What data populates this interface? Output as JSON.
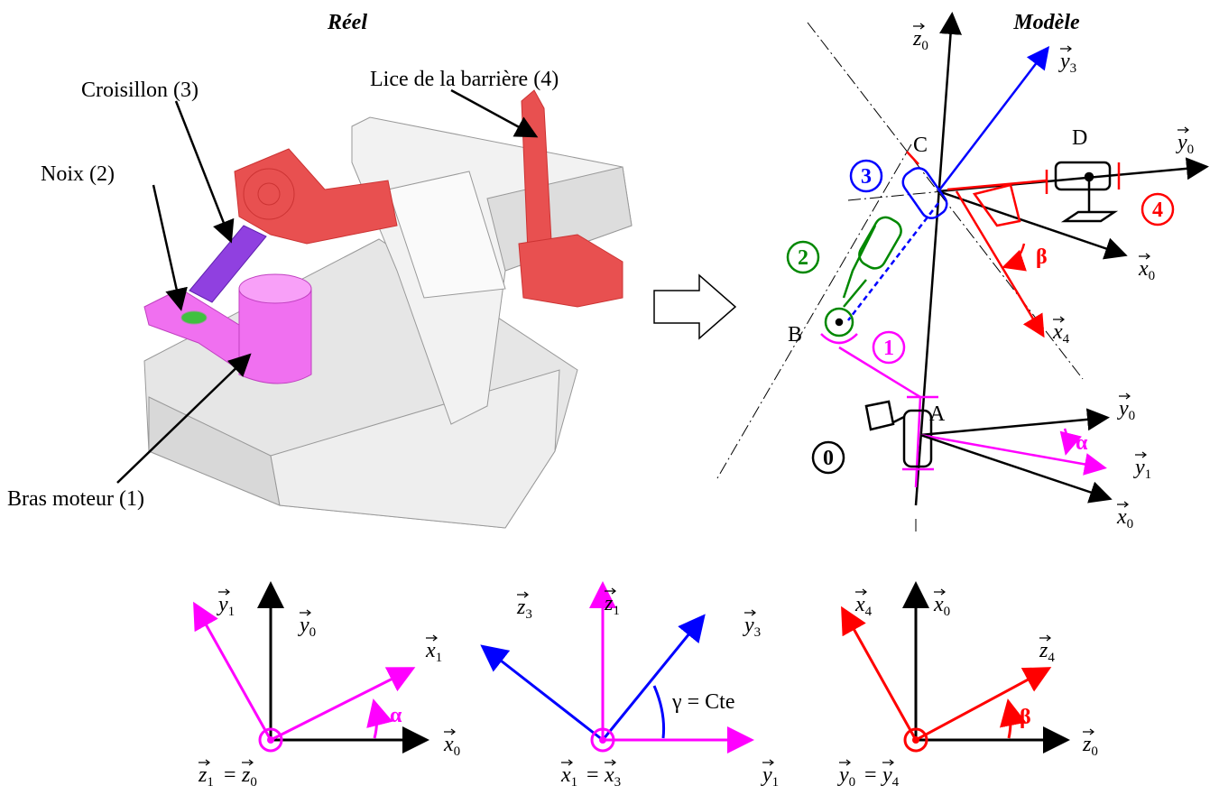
{
  "real": {
    "title": "Réel",
    "labels": [
      "Lice de la barrière (4)",
      "Croisillon (3)",
      "Noix (2)",
      "Bras moteur (1)"
    ]
  },
  "model": {
    "title": "Modèle",
    "points": [
      "C",
      "D",
      "B",
      "A"
    ],
    "solids": [
      "3",
      "4",
      "2",
      "1",
      "0"
    ],
    "angles": [
      "β",
      "α"
    ],
    "vectors": [
      {
        "letter": "z",
        "sub": "0"
      },
      {
        "letter": "y",
        "sub": "3"
      },
      {
        "letter": "y",
        "sub": "0"
      },
      {
        "letter": "x",
        "sub": "0"
      },
      {
        "letter": "x",
        "sub": "4"
      },
      {
        "letter": "y",
        "sub": "0"
      },
      {
        "letter": "y",
        "sub": "1"
      },
      {
        "letter": "x",
        "sub": "0"
      }
    ]
  },
  "bases": [
    {
      "vectors": [
        {
          "letter": "y",
          "sub": "1"
        },
        {
          "letter": "y",
          "sub": "0"
        },
        {
          "letter": "x",
          "sub": "1"
        },
        {
          "letter": "x",
          "sub": "0"
        }
      ],
      "angle": "α",
      "equation": {
        "lhs": {
          "letter": "z",
          "sub": "1"
        },
        "sign": "=",
        "rhs": {
          "letter": "z",
          "sub": "0"
        }
      }
    },
    {
      "vectors": [
        {
          "letter": "z",
          "sub": "3"
        },
        {
          "letter": "z",
          "sub": "1"
        },
        {
          "letter": "y",
          "sub": "3"
        },
        {
          "letter": "y",
          "sub": "1"
        }
      ],
      "angle": "γ = Cte",
      "equation": {
        "lhs": {
          "letter": "x",
          "sub": "1"
        },
        "sign": "=",
        "rhs": {
          "letter": "x",
          "sub": "3"
        }
      }
    },
    {
      "vectors": [
        {
          "letter": "x",
          "sub": "4"
        },
        {
          "letter": "x",
          "sub": "0"
        },
        {
          "letter": "z",
          "sub": "4"
        },
        {
          "letter": "z",
          "sub": "0"
        }
      ],
      "angle": "β",
      "equation": {
        "lhs": {
          "letter": "y",
          "sub": "0"
        },
        "sign": "=",
        "rhs": {
          "letter": "y",
          "sub": "4"
        }
      }
    }
  ]
}
